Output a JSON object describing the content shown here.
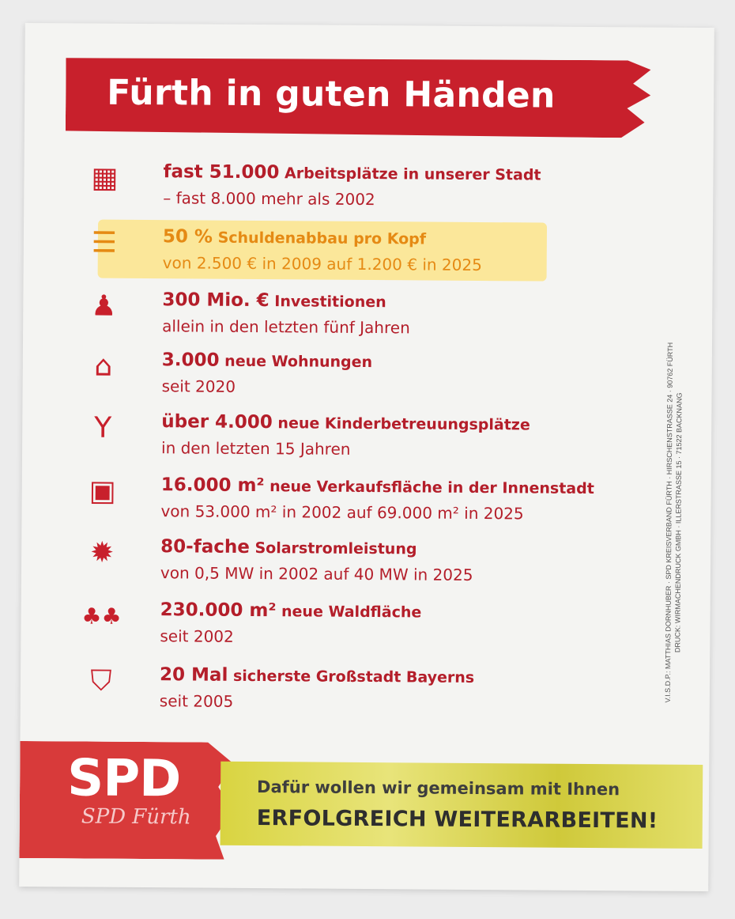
{
  "flyer": {
    "title": "Fürth in guten Händen",
    "items": [
      {
        "icon": "office-building-icon",
        "glyph": "▦",
        "big": "fast 51.000",
        "rest": " Arbeitsplätze in unserer Stadt",
        "sub": "– fast 8.000 mehr als 2002"
      },
      {
        "icon": "coin-stack-icon",
        "glyph": "☰",
        "big": "50 %",
        "rest": " Schuldenabbau pro Kopf",
        "sub": "von 2.500 € in 2009 auf 1.200 € in 2025"
      },
      {
        "icon": "construction-worker-icon",
        "glyph": "♟",
        "big": "300 Mio. €",
        "rest": " Investitionen",
        "sub": "allein in den letzten fünf Jahren"
      },
      {
        "icon": "house-heart-icon",
        "glyph": "⌂",
        "big": "3.000",
        "rest": " neue Wohnungen",
        "sub": "seit 2020"
      },
      {
        "icon": "child-icon",
        "glyph": "Y",
        "big": "über 4.000",
        "rest": " neue Kinderbetreuungsplätze",
        "sub": "in den letzten 15 Jahren"
      },
      {
        "icon": "shopping-bags-icon",
        "glyph": "▣",
        "big": "16.000 m²",
        "rest": " neue Verkaufsfläche in der Innenstadt",
        "sub": "von 53.000 m² in 2002 auf 69.000 m² in 2025"
      },
      {
        "icon": "sun-icon",
        "glyph": "✹",
        "big": "80-fache",
        "rest": " Solarstromleistung",
        "sub": "von 0,5 MW in 2002 auf 40 MW in 2025"
      },
      {
        "icon": "trees-icon",
        "glyph": "♣♣",
        "big": "230.000 m²",
        "rest": " neue Waldfläche",
        "sub": "seit 2002"
      },
      {
        "icon": "shield-check-icon",
        "glyph": "⛉",
        "big": "20 Mal",
        "rest": " sicherste Großstadt Bayerns",
        "sub": "seit 2005"
      }
    ],
    "imprint_line1": "V.I.S.D.P.: MATTHIAS DORNHUBER · SPD KREISVERBAND FÜRTH · HIRSCHENSTRASSE 24 · 90762 FÜRTH",
    "imprint_line2": "DRUCK: WIRMACHENDRUCK GMBH · ILLERSTRASSE 15 · 71522 BACKNANG",
    "logo_text": "SPD",
    "logo_subtext": "SPD Fürth",
    "footer_line1": "Dafür wollen wir gemeinsam mit Ihnen",
    "footer_line2": "ERFOLGREICH WEITERARBEITEN!"
  },
  "colors": {
    "red": "#c8202c",
    "gold_text": "#e58a14",
    "highlight": "#fbe79a",
    "footer_gold": "#d9d441"
  }
}
